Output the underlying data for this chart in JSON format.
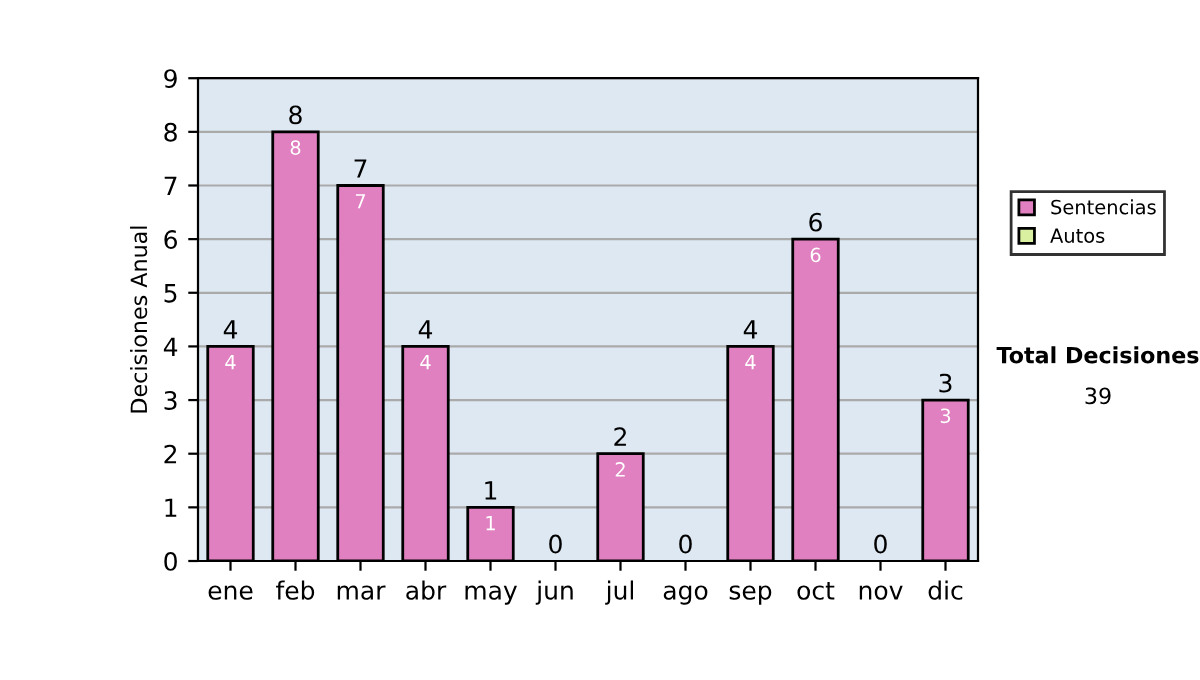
{
  "chart_data": {
    "type": "bar",
    "stacked": true,
    "ylabel": "Decisiones Anual",
    "categories": [
      "ene",
      "feb",
      "mar",
      "abr",
      "may",
      "jun",
      "jul",
      "ago",
      "sep",
      "oct",
      "nov",
      "dic"
    ],
    "series": [
      {
        "name": "Sentencias",
        "color": "#e080c0",
        "values": [
          4,
          8,
          7,
          4,
          1,
          0,
          2,
          0,
          4,
          6,
          0,
          3
        ],
        "value_labels": [
          "4",
          "8",
          "7",
          "4",
          "1",
          null,
          "2",
          null,
          "4",
          "6",
          null,
          "3"
        ]
      },
      {
        "name": "Autos",
        "color": "#d8f0a0",
        "values": [
          0,
          0,
          0,
          0,
          0,
          0,
          0,
          0,
          0,
          0,
          0,
          0
        ]
      }
    ],
    "totals": [
      "4",
      "8",
      "7",
      "4",
      "1",
      "0",
      "2",
      "0",
      "4",
      "6",
      "0",
      "3"
    ],
    "ylim": [
      0,
      9
    ],
    "yticks": [
      0,
      1,
      2,
      3,
      4,
      5,
      6,
      7,
      8,
      9
    ],
    "grid": "y",
    "legend": "right",
    "annotations": [
      "Total Decisiones",
      "39"
    ]
  }
}
